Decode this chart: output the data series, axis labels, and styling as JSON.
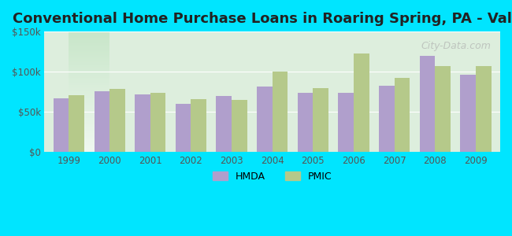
{
  "title": "Conventional Home Purchase Loans in Roaring Spring, PA - Value",
  "years": [
    1999,
    2000,
    2001,
    2002,
    2003,
    2004,
    2005,
    2006,
    2007,
    2008,
    2009
  ],
  "hmda": [
    67000,
    76000,
    72000,
    60000,
    70000,
    82000,
    74000,
    74000,
    83000,
    120000,
    96000
  ],
  "pmic": [
    71000,
    79000,
    74000,
    66000,
    65000,
    100000,
    80000,
    123000,
    92000,
    107000,
    107000
  ],
  "hmda_color": "#b09fcc",
  "pmic_color": "#b5c98a",
  "background_outer": "#00e5ff",
  "background_inner_top": "#e8f5e9",
  "background_inner_bottom": "#d4edda",
  "ylim": [
    0,
    150000
  ],
  "yticks": [
    0,
    50000,
    100000,
    150000
  ],
  "ytick_labels": [
    "$0",
    "$50k",
    "$100k",
    "$150k"
  ],
  "bar_width": 0.38,
  "title_fontsize": 13,
  "legend_labels": [
    "HMDA",
    "PMIC"
  ],
  "watermark": "City-Data.com"
}
